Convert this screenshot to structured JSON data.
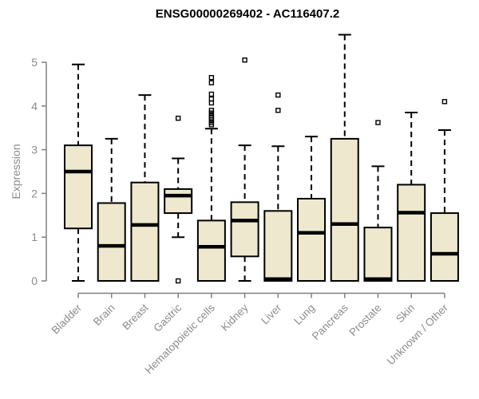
{
  "title": "ENSG00000269402 - AC116407.2",
  "chart_data": {
    "type": "boxplot",
    "title": "ENSG00000269402 - AC116407.2",
    "xlabel": "",
    "ylabel": "Expression",
    "ylim": [
      0,
      5.8
    ],
    "yticks": [
      0,
      1,
      2,
      3,
      4,
      5
    ],
    "grid": false,
    "legend": "none",
    "categories": [
      "Bladder",
      "Brain",
      "Breast",
      "Gastric",
      "Hematopoietic cells",
      "Kidney",
      "Liver",
      "Lung",
      "Pancreas",
      "Prostate",
      "Skin",
      "Unknown / Other"
    ],
    "series": [
      {
        "category": "Bladder",
        "whisker_low": 0,
        "q1": 1.2,
        "median": 2.5,
        "q3": 3.1,
        "whisker_high": 4.95,
        "outliers": []
      },
      {
        "category": "Brain",
        "whisker_low": 0,
        "q1": 0,
        "median": 0.8,
        "q3": 1.78,
        "whisker_high": 3.25,
        "outliers": []
      },
      {
        "category": "Breast",
        "whisker_low": 0,
        "q1": 0,
        "median": 1.28,
        "q3": 2.25,
        "whisker_high": 4.25,
        "outliers": []
      },
      {
        "category": "Gastric",
        "whisker_low": 1.0,
        "q1": 1.55,
        "median": 1.95,
        "q3": 2.1,
        "whisker_high": 2.8,
        "outliers": [
          3.72,
          0.0
        ]
      },
      {
        "category": "Hematopoietic cells",
        "whisker_low": 0,
        "q1": 0,
        "median": 0.78,
        "q3": 1.38,
        "whisker_high": 3.48,
        "outliers": [
          4.65,
          4.53,
          4.27,
          4.16,
          4.07,
          3.9,
          3.84,
          3.78,
          3.73,
          3.68,
          3.62,
          3.57
        ]
      },
      {
        "category": "Kidney",
        "whisker_low": 0,
        "q1": 0.56,
        "median": 1.38,
        "q3": 1.8,
        "whisker_high": 3.1,
        "outliers": [
          5.05
        ]
      },
      {
        "category": "Liver",
        "whisker_low": 0,
        "q1": 0,
        "median": 0.04,
        "q3": 1.6,
        "whisker_high": 3.08,
        "outliers": [
          4.25,
          3.9
        ]
      },
      {
        "category": "Lung",
        "whisker_low": 0,
        "q1": 0,
        "median": 1.1,
        "q3": 1.88,
        "whisker_high": 3.3,
        "outliers": []
      },
      {
        "category": "Pancreas",
        "whisker_low": 0,
        "q1": 0,
        "median": 1.3,
        "q3": 3.25,
        "whisker_high": 5.63,
        "outliers": []
      },
      {
        "category": "Prostate",
        "whisker_low": 0,
        "q1": 0,
        "median": 0.04,
        "q3": 1.22,
        "whisker_high": 2.62,
        "outliers": [
          3.62
        ]
      },
      {
        "category": "Skin",
        "whisker_low": 0,
        "q1": 0,
        "median": 1.56,
        "q3": 2.2,
        "whisker_high": 3.85,
        "outliers": []
      },
      {
        "category": "Unknown / Other",
        "whisker_low": 0,
        "q1": 0,
        "median": 0.62,
        "q3": 1.55,
        "whisker_high": 3.45,
        "outliers": [
          4.1
        ]
      }
    ],
    "colors": {
      "box_fill": "#EDE8CE",
      "box_stroke": "#000000",
      "axis": "#808080",
      "tick_label": "#8C8C8C",
      "title": "#000000",
      "background": "#FFFFFF"
    }
  }
}
